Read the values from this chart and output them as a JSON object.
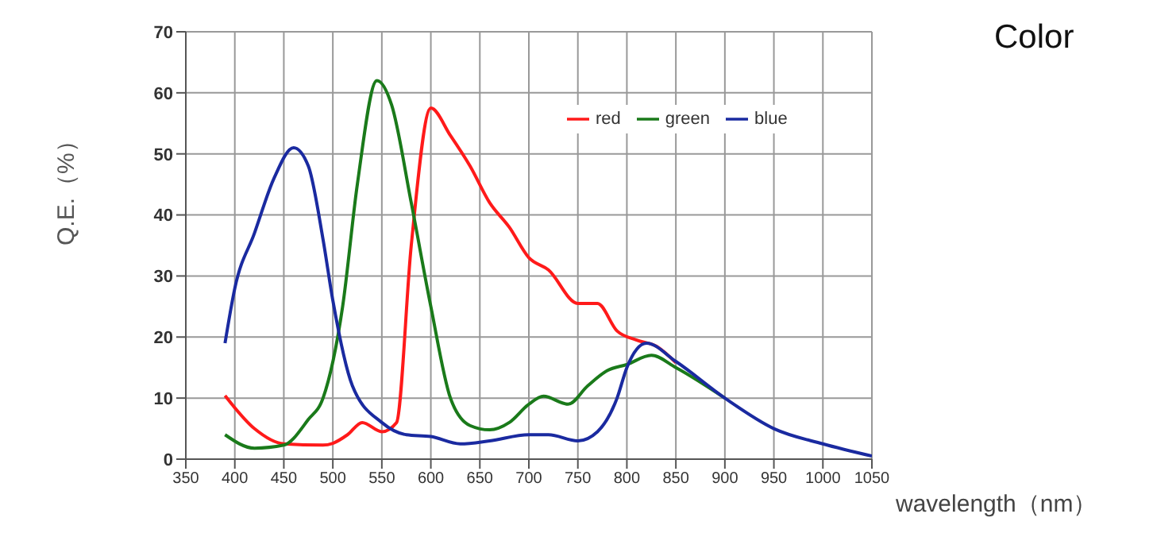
{
  "chart_data": {
    "type": "line",
    "title": "Color",
    "xlabel": "wavelength（nm）",
    "ylabel": "Q.E.（%）",
    "xlim": [
      350,
      1050
    ],
    "xticks": [
      350,
      400,
      450,
      500,
      550,
      600,
      650,
      700,
      750,
      800,
      850,
      900,
      950,
      1000,
      1050
    ],
    "ylim": [
      0,
      70
    ],
    "yticks": [
      0,
      10,
      20,
      30,
      40,
      50,
      60,
      70
    ],
    "grid": true,
    "legend": "top right",
    "marker": "none",
    "line_style": "solid",
    "series": [
      {
        "name": "red",
        "color": "#ff1a1a",
        "x": [
          390,
          420,
          450,
          490,
          500,
          515,
          530,
          550,
          565,
          580,
          600,
          620,
          640,
          660,
          680,
          700,
          720,
          750,
          770,
          790,
          810,
          830,
          850
        ],
        "values": [
          10.4,
          5,
          2.5,
          2.3,
          2.6,
          4,
          6,
          4.5,
          6,
          35,
          57.5,
          53,
          48,
          42,
          38,
          33,
          31,
          25.5,
          25.5,
          21,
          19.5,
          18.5,
          15.8
        ]
      },
      {
        "name": "green",
        "color": "#1a7a1a",
        "x": [
          390,
          420,
          450,
          475,
          490,
          510,
          525,
          545,
          560,
          580,
          600,
          620,
          640,
          660,
          680,
          700,
          715,
          740,
          760,
          780,
          800,
          825,
          850,
          900
        ],
        "values": [
          4,
          1.8,
          2.3,
          6.5,
          10,
          25,
          45,
          62,
          58,
          42,
          25,
          10,
          5.5,
          4.8,
          6,
          9,
          10.3,
          9,
          12,
          14.5,
          15.5,
          17,
          15,
          10
        ]
      },
      {
        "name": "blue",
        "color": "#1a2aa0",
        "x": [
          390,
          400,
          420,
          440,
          460,
          475,
          490,
          500,
          520,
          550,
          575,
          600,
          630,
          660,
          700,
          720,
          750,
          770,
          790,
          800,
          820,
          850,
          900,
          950,
          1000,
          1050
        ],
        "values": [
          19,
          28,
          37,
          46,
          51,
          48,
          36,
          26,
          12,
          6,
          4,
          3.7,
          2.5,
          3,
          4,
          4,
          3,
          4.5,
          10,
          15,
          19,
          16,
          10,
          5,
          2.5,
          0.5
        ]
      }
    ]
  }
}
